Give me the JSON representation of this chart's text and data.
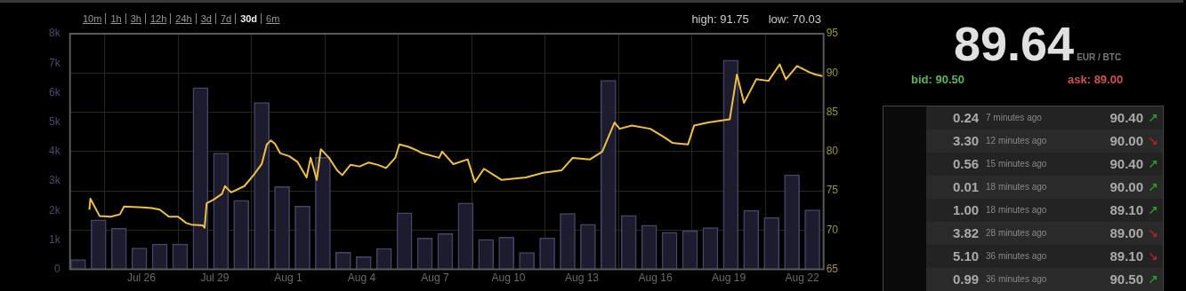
{
  "chart_data": [
    {
      "type": "bar",
      "annotations": [
        "10m",
        "1h",
        "3h",
        "12h",
        "24h",
        "3d",
        "7d",
        "30d",
        "6m",
        "high: 91.75",
        "low: 70.03"
      ],
      "xlim": [
        "--07-23T02:00",
        "--08-22T21:00"
      ],
      "xticks": [
        {
          "value": "--07-26",
          "label": "Jul 26"
        },
        {
          "value": "--07-29",
          "label": "Jul 29"
        },
        {
          "value": "--08-01",
          "label": "Aug 1"
        },
        {
          "value": "--08-04",
          "label": "Aug 4"
        },
        {
          "value": "--08-07",
          "label": "Aug 7"
        },
        {
          "value": "--08-10",
          "label": "Aug 10"
        },
        {
          "value": "--08-13",
          "label": "Aug 13"
        },
        {
          "value": "--08-16",
          "label": "Aug 16"
        },
        {
          "value": "--08-19",
          "label": "Aug 19"
        },
        {
          "value": "--08-22",
          "label": "Aug 22"
        }
      ],
      "ylim": [
        0,
        8000
      ],
      "yticks": [
        0,
        {
          "value": 1000,
          "label": "1k"
        },
        {
          "value": 2000,
          "label": "2k"
        },
        {
          "value": 3000,
          "label": "3k"
        },
        {
          "value": 4000,
          "label": "4k"
        },
        {
          "value": 5000,
          "label": "5k"
        },
        {
          "value": 6000,
          "label": "6k"
        },
        {
          "value": 7000,
          "label": "7k"
        },
        {
          "value": 8000,
          "label": "8k"
        }
      ],
      "y2lim": [
        65,
        95
      ],
      "y2ticks": [
        65,
        70,
        75,
        80,
        85,
        90,
        95
      ],
      "grid": true,
      "legend": false,
      "series": [
        {
          "type": "bar",
          "color": "#1c1c2e",
          "x": [
            "--07-23T10:00",
            "--07-24T06:00",
            "--07-25T02:00",
            "--07-25T22:00",
            "--07-26T18:00",
            "--07-27T14:00",
            "--07-28T10:00",
            "--07-29T06:00",
            "--07-30T02:00",
            "--07-30T22:00",
            "--07-31T18:00",
            "--08-01T14:00",
            "--08-02T10:00",
            "--08-03T06:00",
            "--08-04T02:00",
            "--08-04T22:00",
            "--08-05T18:00",
            "--08-06T14:00",
            "--08-07T10:00",
            "--08-08T06:00",
            "--08-09T02:00",
            "--08-09T22:00",
            "--08-10T18:00",
            "--08-11T14:00",
            "--08-12T10:00",
            "--08-13T06:00",
            "--08-14T02:00",
            "--08-14T22:00",
            "--08-15T18:00",
            "--08-16T14:00",
            "--08-17T10:00",
            "--08-18T06:00",
            "--08-19T02:00",
            "--08-19T22:00",
            "--08-20T18:00",
            "--08-21T14:00",
            "--08-22T10:00"
          ],
          "values": [
            330,
            1680,
            1390,
            720,
            860,
            860,
            6170,
            3950,
            2340,
            5660,
            2810,
            2150,
            3800,
            580,
            430,
            710,
            1920,
            1060,
            1210,
            2250,
            1020,
            1090,
            570,
            1070,
            1900,
            1530,
            6420,
            1830,
            1500,
            1260,
            1310,
            1420,
            7100,
            2000,
            1760,
            3210,
            2020
          ]
        },
        {
          "type": "line",
          "axis": "y2",
          "color": "#f0c040",
          "x": [
            "--07-23T21:00",
            "--07-23T22:00",
            "--07-24T07:00",
            "--07-24T18:00",
            "--07-25T03:00",
            "--07-25T07:00",
            "--07-26T01:00",
            "--07-26T10:00",
            "--07-26T18:00",
            "--07-27T03:00",
            "--07-27T12:00",
            "--07-27T20:00",
            "--07-28T01:00",
            "--07-28T12:00",
            "--07-28T14:00",
            "--07-28T16:00",
            "--07-28T23:00",
            "--07-29T07:00",
            "--07-29T10:00",
            "--07-29T16:00",
            "--07-30T05:00",
            "--07-30T14:00",
            "--07-30T22:00",
            "--07-31T03:00",
            "--07-31T07:00",
            "--07-31T11:00",
            "--07-31T16:00",
            "--08-01T01:00",
            "--08-01T09:00",
            "--08-01T18:00",
            "--08-01T22:00",
            "--08-02T04:00",
            "--08-02T08:00",
            "--08-02T16:00",
            "--08-03T00:00",
            "--08-03T05:00",
            "--08-03T13:00",
            "--08-03T22:00",
            "--08-04T07:00",
            "--08-04T16:00",
            "--08-05T00:00",
            "--08-05T09:00",
            "--08-05T13:00",
            "--08-05T22:00",
            "--08-06T07:00",
            "--08-06T11:00",
            "--08-07T04:00",
            "--08-07T07:00",
            "--08-07T18:00",
            "--08-08T08:00",
            "--08-08T15:00",
            "--08-09T00:00",
            "--08-09T17:00",
            "--08-10T17:00",
            "--08-11T10:00",
            "--08-12T04:00",
            "--08-12T15:00",
            "--08-13T08:00",
            "--08-13T20:00",
            "--08-14T08:00",
            "--08-14T13:00",
            "--08-15T01:00",
            "--08-15T19:00",
            "--08-16T09:00",
            "--08-16T17:00",
            "--08-17T08:00",
            "--08-17T14:00",
            "--08-18T04:00",
            "--08-19T01:00",
            "--08-19T08:00",
            "--08-19T15:00",
            "--08-20T03:00",
            "--08-20T15:00",
            "--08-21T02:00",
            "--08-21T08:00",
            "--08-21T19:00",
            "--08-22T07:00",
            "--08-22T13:00",
            "--08-22T20:00"
          ],
          "values": [
            72.6,
            74.0,
            71.8,
            71.7,
            72.0,
            73.0,
            72.9,
            72.8,
            72.6,
            71.7,
            71.7,
            70.9,
            70.7,
            70.6,
            70.3,
            73.4,
            73.9,
            74.6,
            75.6,
            74.8,
            75.6,
            77.0,
            78.4,
            80.9,
            81.4,
            81.0,
            79.8,
            79.4,
            78.7,
            76.7,
            79.2,
            76.4,
            80.3,
            79.2,
            77.6,
            77.0,
            78.3,
            78.1,
            78.6,
            78.3,
            77.9,
            79.2,
            80.9,
            80.6,
            80.1,
            79.8,
            79.2,
            80.0,
            78.4,
            79.0,
            76.1,
            77.8,
            76.4,
            76.7,
            77.3,
            77.6,
            79.2,
            79.0,
            80.0,
            83.7,
            82.9,
            83.3,
            82.9,
            81.8,
            81.1,
            80.9,
            83.3,
            83.7,
            84.1,
            89.8,
            86.2,
            89.2,
            89.0,
            91.1,
            89.2,
            90.9,
            90.1,
            89.8,
            89.6
          ]
        }
      ]
    },
    {
      "type": "other",
      "title": "89.64",
      "subtitle": "EUR / BTC",
      "annotations": [
        "bid: 90.50",
        "ask: 89.00",
        "0.24",
        "7 minutes ago",
        "90.40",
        "3.30",
        "12 minutes ago",
        "90.00",
        "0.56",
        "15 minutes ago",
        "90.40",
        "0.01",
        "18 minutes ago",
        "90.00",
        "1.00",
        "18 minutes ago",
        "89.10",
        "3.82",
        "28 minutes ago",
        "89.00",
        "5.10",
        "36 minutes ago",
        "89.10",
        "0.99",
        "36 minutes ago",
        "90.50"
      ]
    }
  ]
}
